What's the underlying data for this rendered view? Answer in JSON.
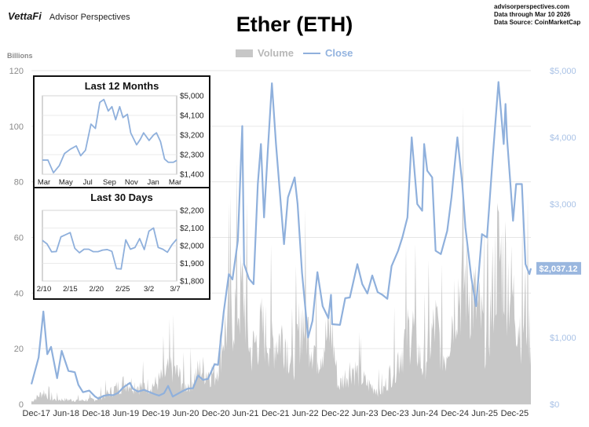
{
  "header": {
    "brand_logo": "VettaFi",
    "brand_name": "Advisor Perspectives",
    "site": "advisorperspectives.com",
    "date_line": "Data through Mar 10 2026",
    "source_line": "Data Source: CoinMarketCap",
    "title": "Ether (ETH)"
  },
  "legend": {
    "volume": "Volume",
    "close": "Close"
  },
  "colors": {
    "volume": "#c7c7c7",
    "close": "#8fb0dc",
    "last_label_bg": "#9ab7df"
  },
  "chart_data": [
    {
      "type": "area",
      "title": "Ether (ETH)",
      "left_axis_label": "Billions",
      "left_ylim": [
        0,
        120
      ],
      "left_ticks": [
        "0",
        "20",
        "40",
        "60",
        "80",
        "100",
        "120"
      ],
      "right_ylim": [
        0,
        5000
      ],
      "right_ticks": [
        "$0",
        "$1,000",
        "$2,000",
        "$3,000",
        "$4,000",
        "$5,000"
      ],
      "x_tick_labels": [
        "Dec-17",
        "Jun-18",
        "Dec-18",
        "Jun-19",
        "Dec-19",
        "Jun-20",
        "Dec-20",
        "Jun-21",
        "Dec-21",
        "Jun-22",
        "Dec-22",
        "Jun-23",
        "Dec-23",
        "Jun-24",
        "Dec-24",
        "Jun-25",
        "Dec-25"
      ],
      "x_range": [
        "2017-11-01",
        "2026-03-10"
      ],
      "grid": true,
      "legend_position": "top-center",
      "last_value_label": "$2,037.12",
      "series": [
        {
          "name": "Close",
          "axis": "right",
          "points": [
            [
              "2017-11-01",
              300
            ],
            [
              "2017-12-15",
              700
            ],
            [
              "2018-01-13",
              1390
            ],
            [
              "2018-02-06",
              750
            ],
            [
              "2018-03-01",
              860
            ],
            [
              "2018-04-07",
              390
            ],
            [
              "2018-05-05",
              800
            ],
            [
              "2018-06-15",
              500
            ],
            [
              "2018-07-24",
              480
            ],
            [
              "2018-08-15",
              290
            ],
            [
              "2018-09-12",
              180
            ],
            [
              "2018-10-20",
              205
            ],
            [
              "2018-11-25",
              115
            ],
            [
              "2018-12-15",
              85
            ],
            [
              "2019-01-15",
              125
            ],
            [
              "2019-02-15",
              140
            ],
            [
              "2019-03-15",
              135
            ],
            [
              "2019-04-15",
              170
            ],
            [
              "2019-05-15",
              250
            ],
            [
              "2019-06-26",
              320
            ],
            [
              "2019-07-15",
              230
            ],
            [
              "2019-08-15",
              190
            ],
            [
              "2019-09-20",
              215
            ],
            [
              "2019-10-25",
              180
            ],
            [
              "2019-11-25",
              150
            ],
            [
              "2019-12-20",
              130
            ],
            [
              "2020-01-20",
              165
            ],
            [
              "2020-02-14",
              275
            ],
            [
              "2020-03-13",
              115
            ],
            [
              "2020-04-15",
              160
            ],
            [
              "2020-05-15",
              200
            ],
            [
              "2020-06-15",
              235
            ],
            [
              "2020-07-15",
              240
            ],
            [
              "2020-08-15",
              430
            ],
            [
              "2020-09-15",
              365
            ],
            [
              "2020-10-15",
              380
            ],
            [
              "2020-11-24",
              600
            ],
            [
              "2020-12-15",
              590
            ],
            [
              "2021-01-19",
              1390
            ],
            [
              "2021-02-19",
              1950
            ],
            [
              "2021-03-13",
              1870
            ],
            [
              "2021-04-15",
              2450
            ],
            [
              "2021-05-12",
              4170
            ],
            [
              "2021-05-23",
              2100
            ],
            [
              "2021-06-22",
              1880
            ],
            [
              "2021-07-20",
              1800
            ],
            [
              "2021-08-15",
              3300
            ],
            [
              "2021-09-03",
              3900
            ],
            [
              "2021-09-22",
              2800
            ],
            [
              "2021-10-15",
              3800
            ],
            [
              "2021-11-09",
              4810
            ],
            [
              "2021-12-04",
              3900
            ],
            [
              "2022-01-22",
              2400
            ],
            [
              "2022-02-15",
              3100
            ],
            [
              "2022-03-28",
              3400
            ],
            [
              "2022-04-15",
              3000
            ],
            [
              "2022-05-12",
              1970
            ],
            [
              "2022-06-18",
              1000
            ],
            [
              "2022-07-15",
              1250
            ],
            [
              "2022-08-14",
              1980
            ],
            [
              "2022-09-15",
              1470
            ],
            [
              "2022-10-20",
              1290
            ],
            [
              "2022-11-05",
              1640
            ],
            [
              "2022-11-12",
              1200
            ],
            [
              "2022-12-30",
              1190
            ],
            [
              "2023-01-31",
              1590
            ],
            [
              "2023-02-28",
              1600
            ],
            [
              "2023-04-15",
              2100
            ],
            [
              "2023-05-15",
              1800
            ],
            [
              "2023-06-15",
              1660
            ],
            [
              "2023-07-15",
              1930
            ],
            [
              "2023-08-17",
              1680
            ],
            [
              "2023-09-15",
              1640
            ],
            [
              "2023-10-15",
              1580
            ],
            [
              "2023-11-10",
              2070
            ],
            [
              "2023-12-20",
              2300
            ],
            [
              "2024-01-15",
              2500
            ],
            [
              "2024-02-15",
              2800
            ],
            [
              "2024-03-12",
              4000
            ],
            [
              "2024-04-15",
              3000
            ],
            [
              "2024-05-15",
              2900
            ],
            [
              "2024-05-27",
              3900
            ],
            [
              "2024-06-15",
              3500
            ],
            [
              "2024-07-15",
              3400
            ],
            [
              "2024-08-05",
              2300
            ],
            [
              "2024-09-06",
              2250
            ],
            [
              "2024-10-15",
              2600
            ],
            [
              "2024-11-10",
              3100
            ],
            [
              "2024-12-16",
              4000
            ],
            [
              "2025-01-15",
              3300
            ],
            [
              "2025-02-03",
              2650
            ],
            [
              "2025-03-11",
              1900
            ],
            [
              "2025-04-09",
              1470
            ],
            [
              "2025-05-15",
              2550
            ],
            [
              "2025-06-15",
              2500
            ],
            [
              "2025-07-20",
              3700
            ],
            [
              "2025-08-24",
              4830
            ],
            [
              "2025-09-25",
              3900
            ],
            [
              "2025-10-06",
              4500
            ],
            [
              "2025-10-15",
              4000
            ],
            [
              "2025-11-05",
              3300
            ],
            [
              "2025-11-21",
              2750
            ],
            [
              "2025-12-10",
              3300
            ],
            [
              "2026-01-14",
              3300
            ],
            [
              "2026-02-05",
              2100
            ],
            [
              "2026-03-01",
              1950
            ],
            [
              "2026-03-10",
              2037
            ]
          ]
        },
        {
          "name": "Volume",
          "axis": "left",
          "unit": "Billions",
          "points": [
            [
              "2017-11-01",
              1
            ],
            [
              "2018-01-15",
              5
            ],
            [
              "2018-03-01",
              2
            ],
            [
              "2018-06-01",
              1.8
            ],
            [
              "2018-09-01",
              1.5
            ],
            [
              "2018-12-01",
              2
            ],
            [
              "2019-03-01",
              5
            ],
            [
              "2019-06-01",
              9
            ],
            [
              "2019-09-01",
              7
            ],
            [
              "2019-12-01",
              8
            ],
            [
              "2020-03-13",
              15
            ],
            [
              "2020-06-01",
              7
            ],
            [
              "2020-09-01",
              14
            ],
            [
              "2020-12-01",
              12
            ],
            [
              "2021-01-15",
              28
            ],
            [
              "2021-05-19",
              45
            ],
            [
              "2021-07-01",
              20
            ],
            [
              "2021-09-07",
              30
            ],
            [
              "2021-11-15",
              25
            ],
            [
              "2022-01-24",
              28
            ],
            [
              "2022-03-15",
              15
            ],
            [
              "2022-05-12",
              35
            ],
            [
              "2022-06-13",
              30
            ],
            [
              "2022-08-15",
              20
            ],
            [
              "2022-11-09",
              30
            ],
            [
              "2022-12-20",
              7
            ],
            [
              "2023-03-12",
              15
            ],
            [
              "2023-06-15",
              8
            ],
            [
              "2023-09-15",
              5
            ],
            [
              "2023-11-15",
              14
            ],
            [
              "2024-01-12",
              22
            ],
            [
              "2024-03-12",
              32
            ],
            [
              "2024-05-15",
              15
            ],
            [
              "2024-08-05",
              32
            ],
            [
              "2024-10-01",
              18
            ],
            [
              "2024-12-05",
              45
            ],
            [
              "2025-02-03",
              50
            ],
            [
              "2025-04-07",
              40
            ],
            [
              "2025-06-15",
              25
            ],
            [
              "2025-08-15",
              60
            ],
            [
              "2025-10-10",
              55
            ],
            [
              "2025-11-21",
              42
            ],
            [
              "2026-01-15",
              30
            ],
            [
              "2026-02-05",
              40
            ],
            [
              "2026-03-10",
              25
            ]
          ]
        }
      ]
    },
    {
      "type": "line",
      "title": "Last 12 Months",
      "ylim": [
        1400,
        5000
      ],
      "y_ticks": [
        "$5,000",
        "$4,100",
        "$3,200",
        "$2,300",
        "$1,400"
      ],
      "x_tick_labels": [
        "Mar",
        "May",
        "Jul",
        "Sep",
        "Nov",
        "Jan",
        "Mar"
      ],
      "x_range": [
        "2025-03-10",
        "2026-03-10"
      ],
      "series": [
        {
          "name": "Close",
          "points": [
            [
              "2025-03-10",
              2050
            ],
            [
              "2025-03-25",
              2050
            ],
            [
              "2025-04-09",
              1470
            ],
            [
              "2025-04-25",
              1800
            ],
            [
              "2025-05-09",
              2350
            ],
            [
              "2025-05-25",
              2550
            ],
            [
              "2025-06-10",
              2700
            ],
            [
              "2025-06-22",
              2250
            ],
            [
              "2025-07-05",
              2500
            ],
            [
              "2025-07-20",
              3700
            ],
            [
              "2025-08-01",
              3500
            ],
            [
              "2025-08-13",
              4700
            ],
            [
              "2025-08-24",
              4830
            ],
            [
              "2025-09-05",
              4300
            ],
            [
              "2025-09-15",
              4500
            ],
            [
              "2025-09-25",
              3900
            ],
            [
              "2025-10-06",
              4500
            ],
            [
              "2025-10-15",
              4000
            ],
            [
              "2025-10-27",
              4150
            ],
            [
              "2025-11-05",
              3300
            ],
            [
              "2025-11-21",
              2750
            ],
            [
              "2025-12-01",
              3000
            ],
            [
              "2025-12-10",
              3300
            ],
            [
              "2025-12-25",
              2950
            ],
            [
              "2026-01-06",
              3200
            ],
            [
              "2026-01-14",
              3300
            ],
            [
              "2026-01-25",
              2900
            ],
            [
              "2026-02-05",
              2100
            ],
            [
              "2026-02-15",
              1950
            ],
            [
              "2026-03-01",
              1950
            ],
            [
              "2026-03-10",
              2037
            ]
          ]
        }
      ]
    },
    {
      "type": "line",
      "title": "Last 30 Days",
      "ylim": [
        1800,
        2200
      ],
      "y_ticks": [
        "$2,200",
        "$2,100",
        "$2,000",
        "$1,900",
        "$1,800"
      ],
      "x_tick_labels": [
        "2/10",
        "2/15",
        "2/20",
        "2/25",
        "3/2",
        "3/7"
      ],
      "x_range": [
        "2026-02-09",
        "2026-03-10"
      ],
      "series": [
        {
          "name": "Close",
          "points": [
            [
              "2026-02-09",
              2030
            ],
            [
              "2026-02-10",
              2010
            ],
            [
              "2026-02-11",
              1965
            ],
            [
              "2026-02-12",
              1967
            ],
            [
              "2026-02-13",
              2050
            ],
            [
              "2026-02-14",
              2062
            ],
            [
              "2026-02-15",
              2074
            ],
            [
              "2026-02-16",
              1985
            ],
            [
              "2026-02-17",
              1960
            ],
            [
              "2026-02-18",
              1980
            ],
            [
              "2026-02-19",
              1980
            ],
            [
              "2026-02-20",
              1966
            ],
            [
              "2026-02-21",
              1966
            ],
            [
              "2026-02-22",
              1975
            ],
            [
              "2026-02-23",
              1978
            ],
            [
              "2026-02-24",
              1968
            ],
            [
              "2026-02-25",
              1870
            ],
            [
              "2026-02-26",
              1868
            ],
            [
              "2026-02-27",
              2033
            ],
            [
              "2026-02-28",
              1980
            ],
            [
              "2026-03-01",
              1990
            ],
            [
              "2026-03-02",
              2040
            ],
            [
              "2026-03-03",
              1978
            ],
            [
              "2026-03-04",
              2082
            ],
            [
              "2026-03-05",
              2100
            ],
            [
              "2026-03-06",
              1990
            ],
            [
              "2026-03-07",
              1980
            ],
            [
              "2026-03-08",
              1963
            ],
            [
              "2026-03-09",
              2006
            ],
            [
              "2026-03-10",
              2037
            ]
          ]
        }
      ]
    }
  ]
}
